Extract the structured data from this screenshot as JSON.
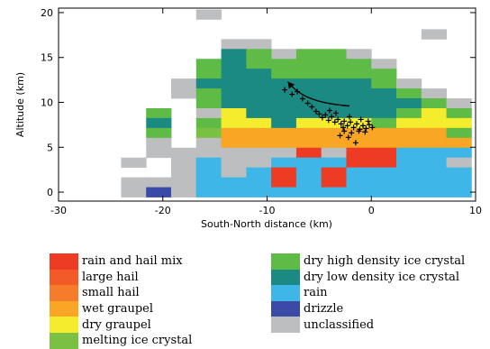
{
  "chart_data": {
    "type": "heatmap",
    "xlabel": "South-North distance (km)",
    "ylabel": "Altitude (km)",
    "xlim": [
      -30,
      10
    ],
    "ylim": [
      -1,
      20.5
    ],
    "x_ticks": [
      "-30",
      "-20",
      "-10",
      "0",
      "10"
    ],
    "x_tick_values": [
      -30,
      -20,
      -10,
      0,
      10
    ],
    "y_ticks": [
      "0",
      "5",
      "10",
      "15",
      "20"
    ],
    "y_tick_values": [
      0,
      5,
      10,
      15,
      20
    ],
    "cell_width_km": 2.4,
    "cell_height_km": 1.1,
    "classes": [
      {
        "name": "rain and hail mix",
        "color": "#ee3b24"
      },
      {
        "name": "large hail",
        "color": "#f25a28"
      },
      {
        "name": "small hail",
        "color": "#f57c2b"
      },
      {
        "name": "wet graupel",
        "color": "#f8a623"
      },
      {
        "name": "dry graupel",
        "color": "#f4ec2c"
      },
      {
        "name": "melting ice crystal",
        "color": "#7ac143"
      },
      {
        "name": "dry high density ice crystal",
        "color": "#5dbb46"
      },
      {
        "name": "dry low density ice crystal",
        "color": "#1a8a82"
      },
      {
        "name": "rain",
        "color": "#3eb6e8"
      },
      {
        "name": "drizzle",
        "color": "#3b4aa6"
      },
      {
        "name": "unclassified",
        "color": "#bcbec0"
      }
    ],
    "cells": [
      {
        "x": -15.6,
        "y": 19.8,
        "class": "unclassified"
      },
      {
        "x": 6.0,
        "y": 17.6,
        "class": "unclassified"
      },
      {
        "x": -13.2,
        "y": 16.5,
        "class": "unclassified"
      },
      {
        "x": -10.8,
        "y": 16.5,
        "class": "unclassified"
      },
      {
        "x": -8.4,
        "y": 15.4,
        "class": "unclassified"
      },
      {
        "x": -13.2,
        "y": 15.4,
        "class": "dry low density ice crystal"
      },
      {
        "x": -10.8,
        "y": 15.4,
        "class": "dry high density ice crystal"
      },
      {
        "x": -6.0,
        "y": 15.4,
        "class": "dry high density ice crystal"
      },
      {
        "x": -3.6,
        "y": 15.4,
        "class": "dry high density ice crystal"
      },
      {
        "x": -1.2,
        "y": 15.4,
        "class": "unclassified"
      },
      {
        "x": -15.6,
        "y": 14.3,
        "class": "dry high density ice crystal"
      },
      {
        "x": -13.2,
        "y": 14.3,
        "class": "dry low density ice crystal"
      },
      {
        "x": -10.8,
        "y": 14.3,
        "class": "dry high density ice crystal"
      },
      {
        "x": -8.4,
        "y": 14.3,
        "class": "dry high density ice crystal"
      },
      {
        "x": -6.0,
        "y": 14.3,
        "class": "dry high density ice crystal"
      },
      {
        "x": -3.6,
        "y": 14.3,
        "class": "dry high density ice crystal"
      },
      {
        "x": -1.2,
        "y": 14.3,
        "class": "dry high density ice crystal"
      },
      {
        "x": 1.2,
        "y": 14.3,
        "class": "unclassified"
      },
      {
        "x": -15.6,
        "y": 13.2,
        "class": "dry high density ice crystal"
      },
      {
        "x": -13.2,
        "y": 13.2,
        "class": "dry low density ice crystal"
      },
      {
        "x": -10.8,
        "y": 13.2,
        "class": "dry low density ice crystal"
      },
      {
        "x": -8.4,
        "y": 13.2,
        "class": "dry high density ice crystal"
      },
      {
        "x": -6.0,
        "y": 13.2,
        "class": "dry high density ice crystal"
      },
      {
        "x": -3.6,
        "y": 13.2,
        "class": "dry high density ice crystal"
      },
      {
        "x": -1.2,
        "y": 13.2,
        "class": "dry high density ice crystal"
      },
      {
        "x": 1.2,
        "y": 13.2,
        "class": "dry high density ice crystal"
      },
      {
        "x": -18.0,
        "y": 12.1,
        "class": "unclassified"
      },
      {
        "x": -15.6,
        "y": 12.1,
        "class": "dry low density ice crystal"
      },
      {
        "x": -13.2,
        "y": 12.1,
        "class": "dry low density ice crystal"
      },
      {
        "x": -10.8,
        "y": 12.1,
        "class": "dry low density ice crystal"
      },
      {
        "x": -8.4,
        "y": 12.1,
        "class": "dry low density ice crystal"
      },
      {
        "x": -6.0,
        "y": 12.1,
        "class": "dry low density ice crystal"
      },
      {
        "x": -3.6,
        "y": 12.1,
        "class": "dry low density ice crystal"
      },
      {
        "x": -1.2,
        "y": 12.1,
        "class": "dry low density ice crystal"
      },
      {
        "x": 1.2,
        "y": 12.1,
        "class": "dry high density ice crystal"
      },
      {
        "x": 3.6,
        "y": 12.1,
        "class": "unclassified"
      },
      {
        "x": -18.0,
        "y": 11.0,
        "class": "unclassified"
      },
      {
        "x": -15.6,
        "y": 11.0,
        "class": "dry high density ice crystal"
      },
      {
        "x": -13.2,
        "y": 11.0,
        "class": "dry low density ice crystal"
      },
      {
        "x": -10.8,
        "y": 11.0,
        "class": "dry low density ice crystal"
      },
      {
        "x": -8.4,
        "y": 11.0,
        "class": "dry low density ice crystal"
      },
      {
        "x": -6.0,
        "y": 11.0,
        "class": "dry low density ice crystal"
      },
      {
        "x": -3.6,
        "y": 11.0,
        "class": "dry low density ice crystal"
      },
      {
        "x": -1.2,
        "y": 11.0,
        "class": "dry low density ice crystal"
      },
      {
        "x": 1.2,
        "y": 11.0,
        "class": "dry low density ice crystal"
      },
      {
        "x": 3.6,
        "y": 11.0,
        "class": "dry high density ice crystal"
      },
      {
        "x": 6.0,
        "y": 11.0,
        "class": "unclassified"
      },
      {
        "x": -15.6,
        "y": 9.9,
        "class": "dry high density ice crystal"
      },
      {
        "x": -13.2,
        "y": 9.9,
        "class": "dry low density ice crystal"
      },
      {
        "x": -10.8,
        "y": 9.9,
        "class": "dry low density ice crystal"
      },
      {
        "x": -8.4,
        "y": 9.9,
        "class": "dry low density ice crystal"
      },
      {
        "x": -6.0,
        "y": 9.9,
        "class": "dry low density ice crystal"
      },
      {
        "x": -3.6,
        "y": 9.9,
        "class": "dry low density ice crystal"
      },
      {
        "x": -1.2,
        "y": 9.9,
        "class": "dry low density ice crystal"
      },
      {
        "x": 1.2,
        "y": 9.9,
        "class": "dry low density ice crystal"
      },
      {
        "x": 3.6,
        "y": 9.9,
        "class": "dry low density ice crystal"
      },
      {
        "x": 6.0,
        "y": 9.9,
        "class": "dry high density ice crystal"
      },
      {
        "x": 8.4,
        "y": 9.9,
        "class": "unclassified"
      },
      {
        "x": -20.4,
        "y": 8.8,
        "class": "dry high density ice crystal"
      },
      {
        "x": -15.6,
        "y": 8.8,
        "class": "unclassified"
      },
      {
        "x": -13.2,
        "y": 8.8,
        "class": "dry graupel"
      },
      {
        "x": -10.8,
        "y": 8.8,
        "class": "dry low density ice crystal"
      },
      {
        "x": -8.4,
        "y": 8.8,
        "class": "dry low density ice crystal"
      },
      {
        "x": -6.0,
        "y": 8.8,
        "class": "dry low density ice crystal"
      },
      {
        "x": -3.6,
        "y": 8.8,
        "class": "dry low density ice crystal"
      },
      {
        "x": -1.2,
        "y": 8.8,
        "class": "dry low density ice crystal"
      },
      {
        "x": 1.2,
        "y": 8.8,
        "class": "dry low density ice crystal"
      },
      {
        "x": 3.6,
        "y": 8.8,
        "class": "dry high density ice crystal"
      },
      {
        "x": 6.0,
        "y": 8.8,
        "class": "dry graupel"
      },
      {
        "x": 8.4,
        "y": 8.8,
        "class": "dry high density ice crystal"
      },
      {
        "x": -20.4,
        "y": 7.7,
        "class": "dry low density ice crystal"
      },
      {
        "x": -15.6,
        "y": 7.7,
        "class": "dry high density ice crystal"
      },
      {
        "x": -13.2,
        "y": 7.7,
        "class": "dry graupel"
      },
      {
        "x": -10.8,
        "y": 7.7,
        "class": "dry graupel"
      },
      {
        "x": -8.4,
        "y": 7.7,
        "class": "dry low density ice crystal"
      },
      {
        "x": -6.0,
        "y": 7.7,
        "class": "dry graupel"
      },
      {
        "x": -3.6,
        "y": 7.7,
        "class": "dry graupel"
      },
      {
        "x": -1.2,
        "y": 7.7,
        "class": "dry graupel"
      },
      {
        "x": 1.2,
        "y": 7.7,
        "class": "dry high density ice crystal"
      },
      {
        "x": 3.6,
        "y": 7.7,
        "class": "dry graupel"
      },
      {
        "x": 6.0,
        "y": 7.7,
        "class": "dry graupel"
      },
      {
        "x": 8.4,
        "y": 7.7,
        "class": "dry graupel"
      },
      {
        "x": -20.4,
        "y": 6.6,
        "class": "dry high density ice crystal"
      },
      {
        "x": -15.6,
        "y": 6.6,
        "class": "melting ice crystal"
      },
      {
        "x": -13.2,
        "y": 6.6,
        "class": "wet graupel"
      },
      {
        "x": -10.8,
        "y": 6.6,
        "class": "wet graupel"
      },
      {
        "x": -8.4,
        "y": 6.6,
        "class": "wet graupel"
      },
      {
        "x": -6.0,
        "y": 6.6,
        "class": "wet graupel"
      },
      {
        "x": -3.6,
        "y": 6.6,
        "class": "wet graupel"
      },
      {
        "x": -1.2,
        "y": 6.6,
        "class": "wet graupel"
      },
      {
        "x": 1.2,
        "y": 6.6,
        "class": "wet graupel"
      },
      {
        "x": 3.6,
        "y": 6.6,
        "class": "wet graupel"
      },
      {
        "x": 6.0,
        "y": 6.6,
        "class": "wet graupel"
      },
      {
        "x": 8.4,
        "y": 6.6,
        "class": "dry high density ice crystal"
      },
      {
        "x": -20.4,
        "y": 5.5,
        "class": "unclassified"
      },
      {
        "x": -15.6,
        "y": 5.5,
        "class": "unclassified"
      },
      {
        "x": -13.2,
        "y": 5.5,
        "class": "wet graupel"
      },
      {
        "x": -10.8,
        "y": 5.5,
        "class": "wet graupel"
      },
      {
        "x": -8.4,
        "y": 5.5,
        "class": "wet graupel"
      },
      {
        "x": -6.0,
        "y": 5.5,
        "class": "wet graupel"
      },
      {
        "x": -3.6,
        "y": 5.5,
        "class": "wet graupel"
      },
      {
        "x": -1.2,
        "y": 5.5,
        "class": "wet graupel"
      },
      {
        "x": 1.2,
        "y": 5.5,
        "class": "wet graupel"
      },
      {
        "x": 3.6,
        "y": 5.5,
        "class": "wet graupel"
      },
      {
        "x": 6.0,
        "y": 5.5,
        "class": "wet graupel"
      },
      {
        "x": 8.4,
        "y": 5.5,
        "class": "wet graupel"
      },
      {
        "x": -20.4,
        "y": 4.4,
        "class": "unclassified"
      },
      {
        "x": -18.0,
        "y": 4.4,
        "class": "unclassified"
      },
      {
        "x": -15.6,
        "y": 4.4,
        "class": "unclassified"
      },
      {
        "x": -13.2,
        "y": 4.4,
        "class": "unclassified"
      },
      {
        "x": -10.8,
        "y": 4.4,
        "class": "unclassified"
      },
      {
        "x": -8.4,
        "y": 4.4,
        "class": "unclassified"
      },
      {
        "x": -6.0,
        "y": 4.4,
        "class": "rain and hail mix"
      },
      {
        "x": -3.6,
        "y": 4.4,
        "class": "unclassified"
      },
      {
        "x": -1.2,
        "y": 4.4,
        "class": "rain and hail mix"
      },
      {
        "x": 1.2,
        "y": 4.4,
        "class": "rain and hail mix"
      },
      {
        "x": 3.6,
        "y": 4.4,
        "class": "rain"
      },
      {
        "x": 6.0,
        "y": 4.4,
        "class": "rain"
      },
      {
        "x": 8.4,
        "y": 4.4,
        "class": "rain"
      },
      {
        "x": -22.8,
        "y": 3.3,
        "class": "unclassified"
      },
      {
        "x": -18.0,
        "y": 3.3,
        "class": "unclassified"
      },
      {
        "x": -15.6,
        "y": 3.3,
        "class": "rain"
      },
      {
        "x": -13.2,
        "y": 3.3,
        "class": "unclassified"
      },
      {
        "x": -10.8,
        "y": 3.3,
        "class": "unclassified"
      },
      {
        "x": -8.4,
        "y": 3.3,
        "class": "rain"
      },
      {
        "x": -6.0,
        "y": 3.3,
        "class": "rain"
      },
      {
        "x": -3.6,
        "y": 3.3,
        "class": "rain"
      },
      {
        "x": -1.2,
        "y": 3.3,
        "class": "rain and hail mix"
      },
      {
        "x": 1.2,
        "y": 3.3,
        "class": "rain and hail mix"
      },
      {
        "x": 3.6,
        "y": 3.3,
        "class": "rain"
      },
      {
        "x": 6.0,
        "y": 3.3,
        "class": "rain"
      },
      {
        "x": 8.4,
        "y": 3.3,
        "class": "unclassified"
      },
      {
        "x": -18.0,
        "y": 2.2,
        "class": "unclassified"
      },
      {
        "x": -15.6,
        "y": 2.2,
        "class": "rain"
      },
      {
        "x": -13.2,
        "y": 2.2,
        "class": "unclassified"
      },
      {
        "x": -10.8,
        "y": 2.2,
        "class": "rain"
      },
      {
        "x": -8.4,
        "y": 2.2,
        "class": "rain and hail mix"
      },
      {
        "x": -6.0,
        "y": 2.2,
        "class": "rain"
      },
      {
        "x": -3.6,
        "y": 2.2,
        "class": "rain and hail mix"
      },
      {
        "x": -1.2,
        "y": 2.2,
        "class": "rain"
      },
      {
        "x": 1.2,
        "y": 2.2,
        "class": "rain"
      },
      {
        "x": 3.6,
        "y": 2.2,
        "class": "rain"
      },
      {
        "x": 6.0,
        "y": 2.2,
        "class": "rain"
      },
      {
        "x": 8.4,
        "y": 2.2,
        "class": "rain"
      },
      {
        "x": -22.8,
        "y": 1.1,
        "class": "unclassified"
      },
      {
        "x": -20.4,
        "y": 1.1,
        "class": "unclassified"
      },
      {
        "x": -18.0,
        "y": 1.1,
        "class": "unclassified"
      },
      {
        "x": -15.6,
        "y": 1.1,
        "class": "rain"
      },
      {
        "x": -13.2,
        "y": 1.1,
        "class": "rain"
      },
      {
        "x": -10.8,
        "y": 1.1,
        "class": "rain"
      },
      {
        "x": -8.4,
        "y": 1.1,
        "class": "rain and hail mix"
      },
      {
        "x": -6.0,
        "y": 1.1,
        "class": "rain"
      },
      {
        "x": -3.6,
        "y": 1.1,
        "class": "rain and hail mix"
      },
      {
        "x": -1.2,
        "y": 1.1,
        "class": "rain"
      },
      {
        "x": 1.2,
        "y": 1.1,
        "class": "rain"
      },
      {
        "x": 3.6,
        "y": 1.1,
        "class": "rain"
      },
      {
        "x": 6.0,
        "y": 1.1,
        "class": "rain"
      },
      {
        "x": 8.4,
        "y": 1.1,
        "class": "rain"
      },
      {
        "x": -22.8,
        "y": 0.0,
        "class": "unclassified"
      },
      {
        "x": -20.4,
        "y": 0.0,
        "class": "drizzle"
      },
      {
        "x": -18.0,
        "y": 0.0,
        "class": "unclassified"
      },
      {
        "x": -15.6,
        "y": 0.0,
        "class": "rain"
      },
      {
        "x": -13.2,
        "y": 0.0,
        "class": "rain"
      },
      {
        "x": -10.8,
        "y": 0.0,
        "class": "rain"
      },
      {
        "x": -8.4,
        "y": 0.0,
        "class": "rain"
      },
      {
        "x": -6.0,
        "y": 0.0,
        "class": "rain"
      },
      {
        "x": -3.6,
        "y": 0.0,
        "class": "rain"
      },
      {
        "x": -1.2,
        "y": 0.0,
        "class": "rain"
      },
      {
        "x": 1.2,
        "y": 0.0,
        "class": "rain"
      },
      {
        "x": 3.6,
        "y": 0.0,
        "class": "rain"
      },
      {
        "x": 6.0,
        "y": 0.0,
        "class": "rain"
      },
      {
        "x": 8.4,
        "y": 0.0,
        "class": "rain"
      }
    ],
    "track_points": [
      [
        -8.3,
        11.4
      ],
      [
        -7.6,
        10.9
      ],
      [
        -7.1,
        11.2
      ],
      [
        -6.6,
        10.4
      ],
      [
        -6.1,
        9.9
      ],
      [
        -5.7,
        9.5
      ],
      [
        -5.3,
        9.0
      ],
      [
        -5.0,
        8.7
      ],
      [
        -4.7,
        8.3
      ],
      [
        -4.4,
        8.6
      ],
      [
        -4.1,
        8.0
      ],
      [
        -3.8,
        8.4
      ],
      [
        -3.5,
        7.8
      ],
      [
        -3.2,
        8.1
      ],
      [
        -2.9,
        7.6
      ],
      [
        -2.6,
        7.9
      ],
      [
        -2.3,
        7.4
      ],
      [
        -2.0,
        7.8
      ],
      [
        -1.7,
        7.2
      ],
      [
        -1.4,
        7.6
      ],
      [
        -1.1,
        7.0
      ],
      [
        -0.8,
        7.4
      ],
      [
        -0.5,
        7.1
      ],
      [
        -0.2,
        7.5
      ],
      [
        0.1,
        7.2
      ],
      [
        -3.0,
        6.3
      ],
      [
        -2.2,
        6.1
      ],
      [
        -1.5,
        5.5
      ],
      [
        -2.6,
        6.8
      ],
      [
        -1.9,
        6.6
      ],
      [
        -3.4,
        8.8
      ],
      [
        -2.1,
        8.4
      ],
      [
        -1.0,
        8.1
      ],
      [
        -0.3,
        7.9
      ],
      [
        -4.0,
        9.1
      ],
      [
        -2.7,
        7.2
      ],
      [
        -1.2,
        6.8
      ],
      [
        -0.6,
        6.7
      ]
    ],
    "arrow_path": [
      [
        -2.1,
        9.6
      ],
      [
        -5.5,
        9.9
      ],
      [
        -7.0,
        10.8
      ],
      [
        -8.0,
        12.3
      ]
    ]
  }
}
